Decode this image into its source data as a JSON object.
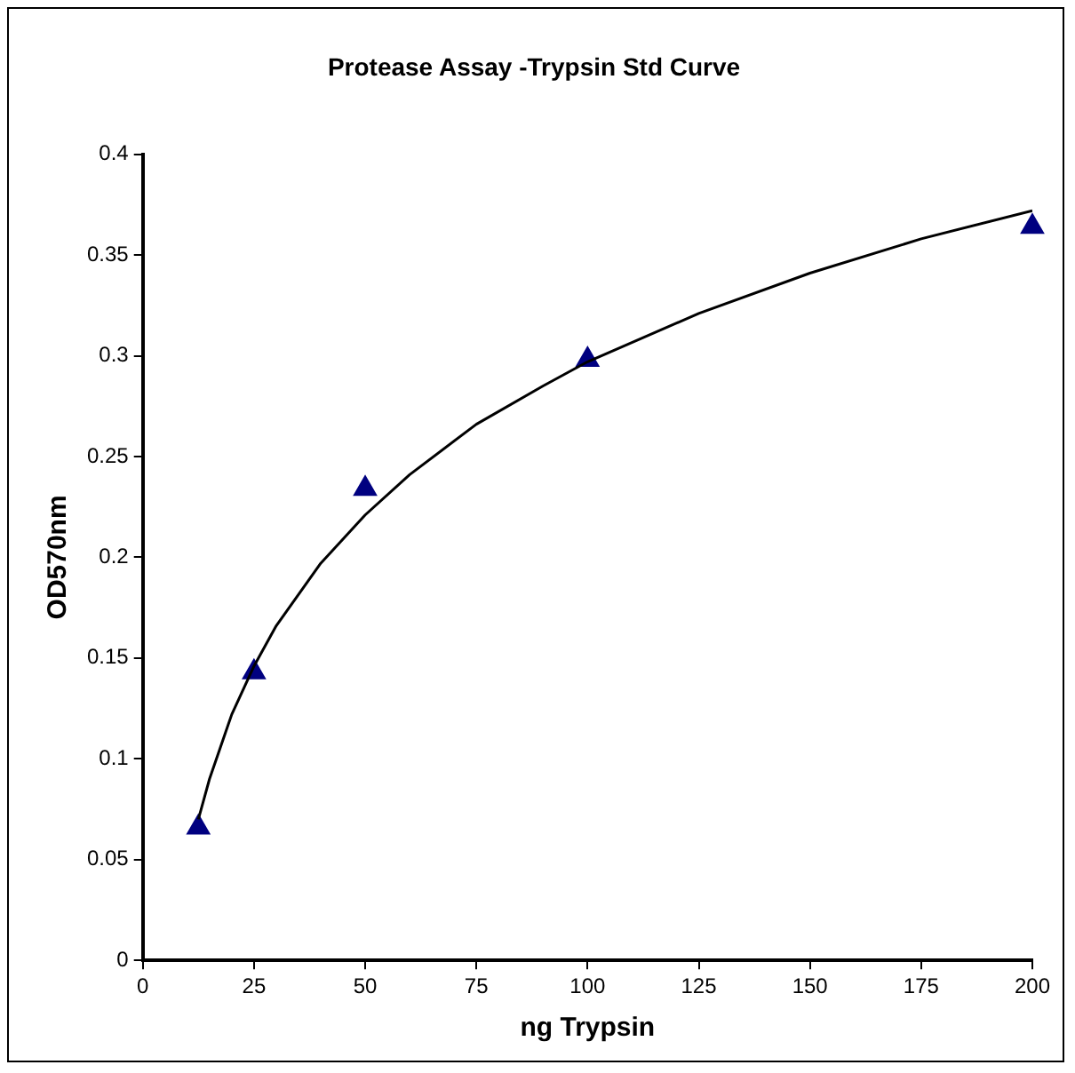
{
  "chart_data": {
    "type": "scatter",
    "title": "Protease Assay -Trypsin Std Curve",
    "xlabel": "ng Trypsin",
    "ylabel": "OD570nm",
    "xlim": [
      0,
      200
    ],
    "xticks": [
      0,
      25,
      50,
      75,
      100,
      125,
      150,
      175,
      200
    ],
    "ylim": [
      0,
      0.4
    ],
    "yticks": [
      0,
      0.05,
      0.1,
      0.15,
      0.2,
      0.25,
      0.3,
      0.35,
      0.4
    ],
    "grid": false,
    "legend": false,
    "series": [
      {
        "color": "#000080",
        "marker": "triangle",
        "x": [
          12.5,
          25,
          50,
          100,
          200
        ],
        "values": [
          0.066,
          0.143,
          0.234,
          0.298,
          0.364
        ]
      },
      {
        "type": "line",
        "color": "#000000",
        "marker": "none",
        "line_style": "solid",
        "x": [
          12.5,
          15,
          20,
          25,
          30,
          40,
          50,
          60,
          75,
          90,
          100,
          125,
          150,
          175,
          200
        ],
        "values": [
          0.07,
          0.09,
          0.122,
          0.146,
          0.166,
          0.197,
          0.221,
          0.241,
          0.266,
          0.285,
          0.297,
          0.321,
          0.341,
          0.358,
          0.372
        ]
      }
    ]
  }
}
